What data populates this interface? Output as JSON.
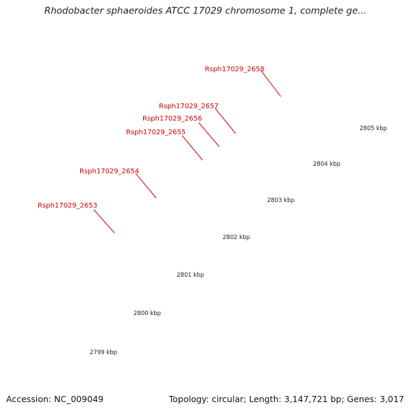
{
  "title": "Rhodobacter sphaeroides ATCC 17029 chromosome 1, complete ge...",
  "footer": {
    "accession": "Accession: NC_009049",
    "summary": "Topology: circular; Length: 3,147,721 bp; Genes: 3,017"
  },
  "gene_labels": [
    "Rsph17029_2658",
    "Rsph17029_2657",
    "Rsph17029_2656",
    "Rsph17029_2655",
    "Rsph17029_2654",
    "Rsph17029_2653"
  ],
  "position_labels": [
    "2799 kbp",
    "2800 kbp",
    "2801 kbp",
    "2802 kbp",
    "2803 kbp",
    "2804 kbp",
    "2805 kbp"
  ],
  "colors": {
    "gene_label": "#cc0000",
    "cds": "#ff0000",
    "gene": "#3f3aa0",
    "rna": "#00e8e8",
    "repeat": "#b8ae84",
    "blue_feature": "#1a18e8",
    "orange_feature": "#ff8c00",
    "backbone": "#909090",
    "tick": "#2e8b2e"
  }
}
